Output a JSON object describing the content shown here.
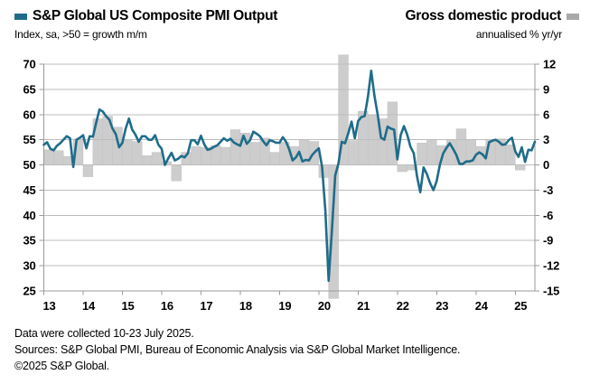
{
  "header": {
    "series1_label": "S&P Global US Composite PMI Output",
    "series1_sublabel": "Index, sa, >50 = growth m/m",
    "series2_label": "Gross domestic product",
    "series2_sublabel": "annualised % yr/yr",
    "series1_color": "#1F6C8A",
    "series2_swatch_color": "#a7a9ab"
  },
  "footer": {
    "line1": "Data were collected 10-23 July 2025.",
    "line2": "Sources: S&P Global PMI, Bureau of Economic Analysis via S&P Global Market Intelligence.",
    "line3": "©2025 S&P Global."
  },
  "chart_data": {
    "type": "line+bar",
    "title": "S&P Global US Composite PMI Output vs Gross domestic product",
    "left_axis": {
      "label": "Index, sa, >50 = growth m/m",
      "min": 25,
      "max": 70,
      "step": 5,
      "ticks": [
        70,
        65,
        60,
        55,
        50,
        45,
        40,
        35,
        30,
        25
      ]
    },
    "right_axis": {
      "label": "annualised % yr/yr",
      "min": -15,
      "max": 12,
      "step": 3,
      "ticks": [
        12,
        9,
        6,
        3,
        0,
        -3,
        -6,
        -9,
        -12,
        -15
      ]
    },
    "x_axis": {
      "tick_labels": [
        "13",
        "14",
        "15",
        "16",
        "17",
        "18",
        "19",
        "20",
        "21",
        "22",
        "23",
        "24",
        "25"
      ],
      "start_year": 2013,
      "end_year_fraction": 2025.5,
      "grid": "horizontal-only"
    },
    "line_series": {
      "name": "S&P Global US Composite PMI Output",
      "axis": "left",
      "color": "#1F6C8A",
      "frequency": "monthly",
      "first_period": "2013-01",
      "last_period": "2025-07",
      "values": [
        54.0,
        54.5,
        53.2,
        52.9,
        53.8,
        54.3,
        55.0,
        55.7,
        55.3,
        49.6,
        55.0,
        55.4,
        55.9,
        53.3,
        55.7,
        55.6,
        58.4,
        61.0,
        60.6,
        59.7,
        59.0,
        57.2,
        56.1,
        53.5,
        54.4,
        57.2,
        59.2,
        57.0,
        56.0,
        54.6,
        55.7,
        55.7,
        55.0,
        55.0,
        55.9,
        54.0,
        53.2,
        50.0,
        51.3,
        52.4,
        50.9,
        51.2,
        51.8,
        51.5,
        52.3,
        54.9,
        54.9,
        54.1,
        55.8,
        54.1,
        53.0,
        53.2,
        53.6,
        53.9,
        54.6,
        55.3,
        54.8,
        55.2,
        54.5,
        54.1,
        53.8,
        55.8,
        54.2,
        54.9,
        56.6,
        56.2,
        55.7,
        54.7,
        53.9,
        54.9,
        54.7,
        54.4,
        54.4,
        55.5,
        54.6,
        53.0,
        50.9,
        51.5,
        52.6,
        50.7,
        51.0,
        50.9,
        52.0,
        52.7,
        53.3,
        49.6,
        40.9,
        27.0,
        37.0,
        47.9,
        50.3,
        54.6,
        54.3,
        56.3,
        58.6,
        55.3,
        58.7,
        59.5,
        59.7,
        63.5,
        68.7,
        63.7,
        59.9,
        55.4,
        55.0,
        57.6,
        57.2,
        57.0,
        51.1,
        55.9,
        57.7,
        56.0,
        53.6,
        52.3,
        47.7,
        44.6,
        49.5,
        48.2,
        46.4,
        45.0,
        46.8,
        50.1,
        52.3,
        53.4,
        54.3,
        53.2,
        52.0,
        50.2,
        50.2,
        50.7,
        50.7,
        50.9,
        52.0,
        52.5,
        52.1,
        51.3,
        54.5,
        54.8,
        55.0,
        54.6,
        54.0,
        54.1,
        54.9,
        55.4,
        52.7,
        51.6,
        53.5,
        50.6,
        53.0,
        52.9,
        54.6
      ]
    },
    "bar_series": {
      "name": "Gross domestic product",
      "axis": "right",
      "color": "#cdcdcd",
      "frequency": "quarterly",
      "first_period": "2013-Q1",
      "last_period": "2025-Q1",
      "values": [
        1.8,
        1.7,
        1.0,
        3.1,
        -1.4,
        5.5,
        5.8,
        4.5,
        3.0,
        2.8,
        1.1,
        1.5,
        0.4,
        -1.9,
        1.5,
        2.2,
        2.1,
        2.3,
        2.1,
        4.2,
        3.8,
        2.7,
        3.2,
        1.5,
        2.7,
        2.2,
        3.0,
        2.8,
        -1.5,
        -15.9,
        13.1,
        2.9,
        6.4,
        5.9,
        5.5,
        7.5,
        -0.8,
        -0.6,
        2.6,
        3.0,
        2.3,
        3.0,
        4.3,
        3.0,
        2.2,
        3.0,
        3.1,
        2.4,
        -0.6
      ],
      "note": "2020 Q2 and 2020 Q3 bars exceed the axis range and are drawn slightly past the plot edges, as in the source image"
    }
  }
}
